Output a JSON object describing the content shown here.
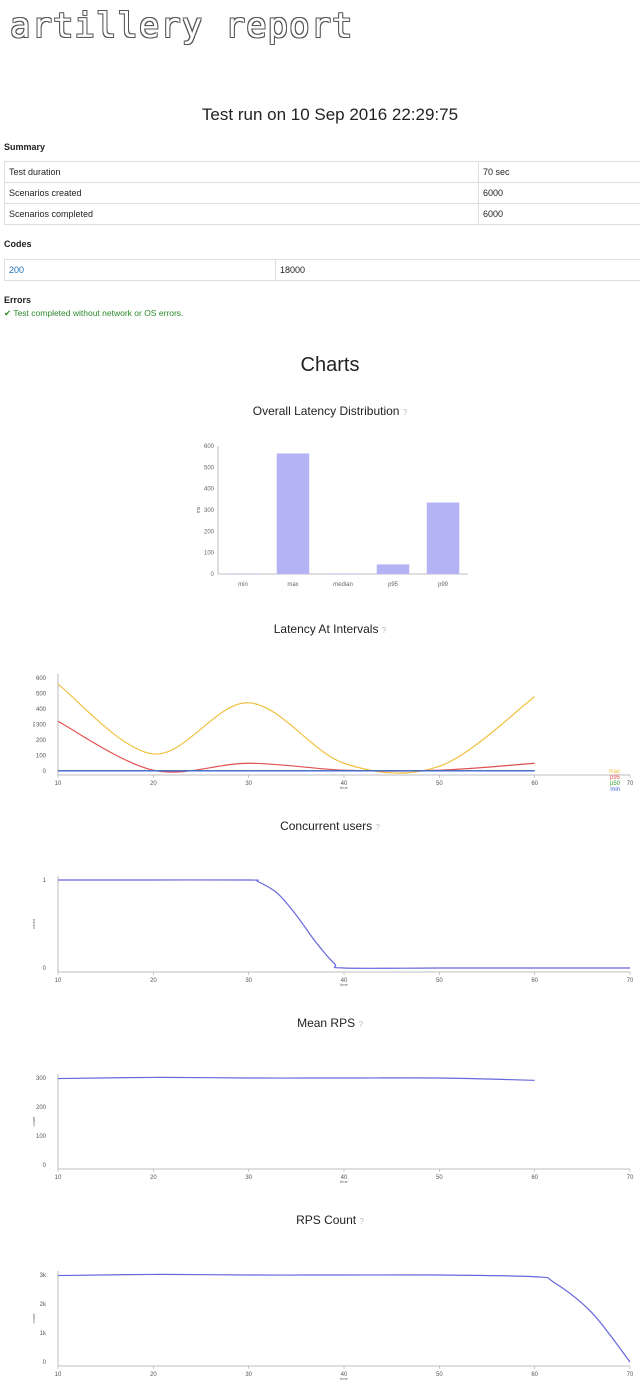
{
  "logo_text": "artillery report",
  "title": "Test run on 10 Sep 2016 22:29:75",
  "summary": {
    "heading": "Summary",
    "rows": [
      {
        "label": "Test duration",
        "value": "70 sec"
      },
      {
        "label": "Scenarios created",
        "value": "6000"
      },
      {
        "label": "Scenarios completed",
        "value": "6000"
      }
    ]
  },
  "codes": {
    "heading": "Codes",
    "rows": [
      {
        "code": "200",
        "count": "18000"
      }
    ]
  },
  "errors": {
    "heading": "Errors",
    "message": "✔ Test completed without network or OS errors."
  },
  "charts_heading": "Charts",
  "colors": {
    "bar": "#b3b3f5",
    "max": "#f0c040",
    "p95": "#e05050",
    "p50": "#30a030",
    "min": "#4060e0",
    "line": "#6666dd",
    "link": "#1f6fb0"
  },
  "chart_data": [
    {
      "type": "bar",
      "title": "Overall Latency Distribution",
      "ylabel": "ms",
      "categories": [
        "min",
        "max",
        "median",
        "p95",
        "p99"
      ],
      "values": [
        1,
        565,
        2,
        45,
        335
      ],
      "ylim": [
        0,
        600
      ],
      "yticks": [
        "0",
        "100",
        "200",
        "300",
        "400",
        "500",
        "600"
      ]
    },
    {
      "type": "line",
      "title": "Latency At Intervals",
      "ylabel": "ms",
      "xlabel": "time",
      "x": [
        10,
        20,
        30,
        40,
        50,
        60
      ],
      "xlim": [
        10,
        70
      ],
      "ylim": [
        0,
        600
      ],
      "xticks": [
        "10",
        "20",
        "30",
        "40",
        "50",
        "60",
        "70"
      ],
      "yticks": [
        "0",
        "100",
        "200",
        "300",
        "400",
        "500",
        "600"
      ],
      "series": [
        {
          "name": "max",
          "values": [
            560,
            110,
            440,
            50,
            30,
            480
          ]
        },
        {
          "name": "p95",
          "values": [
            320,
            5,
            50,
            5,
            5,
            50
          ]
        },
        {
          "name": "p50",
          "values": [
            2,
            2,
            2,
            2,
            2,
            2
          ]
        },
        {
          "name": "min",
          "values": [
            1,
            1,
            1,
            1,
            1,
            1
          ]
        }
      ]
    },
    {
      "type": "line",
      "title": "Concurrent users",
      "ylabel": "count",
      "xlabel": "time",
      "x": [
        10,
        20,
        30,
        31,
        33,
        35,
        37,
        39,
        40,
        50,
        60,
        70
      ],
      "values": [
        1,
        1,
        1,
        0.98,
        0.85,
        0.6,
        0.3,
        0.05,
        0,
        0,
        0,
        0
      ],
      "xlim": [
        10,
        70
      ],
      "ylim": [
        0,
        1
      ],
      "xticks": [
        "10",
        "20",
        "30",
        "40",
        "50",
        "60",
        "70"
      ],
      "yticks": [
        "0",
        "1"
      ]
    },
    {
      "type": "line",
      "title": "Mean RPS",
      "ylabel": "count",
      "xlabel": "time",
      "x": [
        10,
        20,
        30,
        40,
        50,
        60
      ],
      "values": [
        298,
        302,
        300,
        300,
        300,
        292
      ],
      "xlim": [
        10,
        70
      ],
      "ylim": [
        0,
        300
      ],
      "xticks": [
        "10",
        "20",
        "30",
        "40",
        "50",
        "60",
        "70"
      ],
      "yticks": [
        "0",
        "100",
        "200",
        "300"
      ]
    },
    {
      "type": "line",
      "title": "RPS Count",
      "ylabel": "count",
      "xlabel": "time",
      "x": [
        10,
        20,
        30,
        40,
        50,
        60,
        62,
        66,
        70
      ],
      "values": [
        2980,
        3020,
        3000,
        3000,
        3000,
        2940,
        2750,
        1700,
        0
      ],
      "xlim": [
        10,
        70
      ],
      "ylim": [
        0,
        3000
      ],
      "xticks": [
        "10",
        "20",
        "30",
        "40",
        "50",
        "60",
        "70"
      ],
      "yticks": [
        "0",
        "1k",
        "2k",
        "3k"
      ]
    }
  ]
}
